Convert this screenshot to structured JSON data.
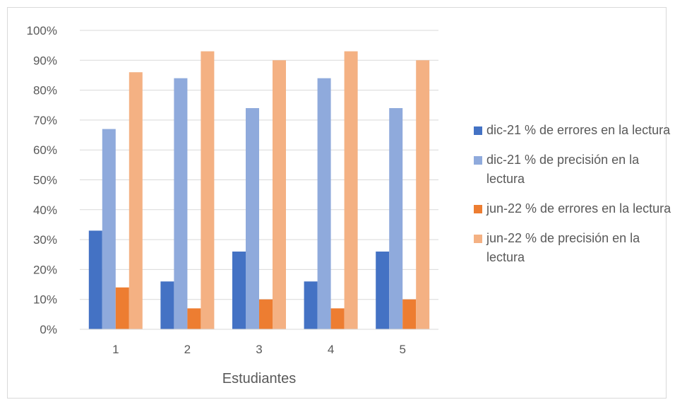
{
  "chart_data": {
    "type": "bar",
    "categories": [
      "1",
      "2",
      "3",
      "4",
      "5"
    ],
    "series": [
      {
        "name": "dic-21 % de errores en la lectura",
        "values": [
          33,
          16,
          26,
          16,
          26
        ],
        "color": "#4472c4"
      },
      {
        "name": "dic-21 % de precisión en la lectura",
        "values": [
          67,
          84,
          74,
          84,
          74
        ],
        "color": "#8faadc"
      },
      {
        "name": "jun-22 % de errores en la lectura",
        "values": [
          14,
          7,
          10,
          7,
          10
        ],
        "color": "#ed7d31"
      },
      {
        "name": "jun-22 % de precisión en la lectura",
        "values": [
          86,
          93,
          90,
          93,
          90
        ],
        "color": "#f4b183"
      }
    ],
    "xlabel": "Estudiantes",
    "ylabel": "",
    "ylim": [
      0,
      100
    ],
    "yticks": [
      "0%",
      "10%",
      "20%",
      "30%",
      "40%",
      "50%",
      "60%",
      "70%",
      "80%",
      "90%",
      "100%"
    ],
    "grid": true,
    "legend_position": "right"
  }
}
